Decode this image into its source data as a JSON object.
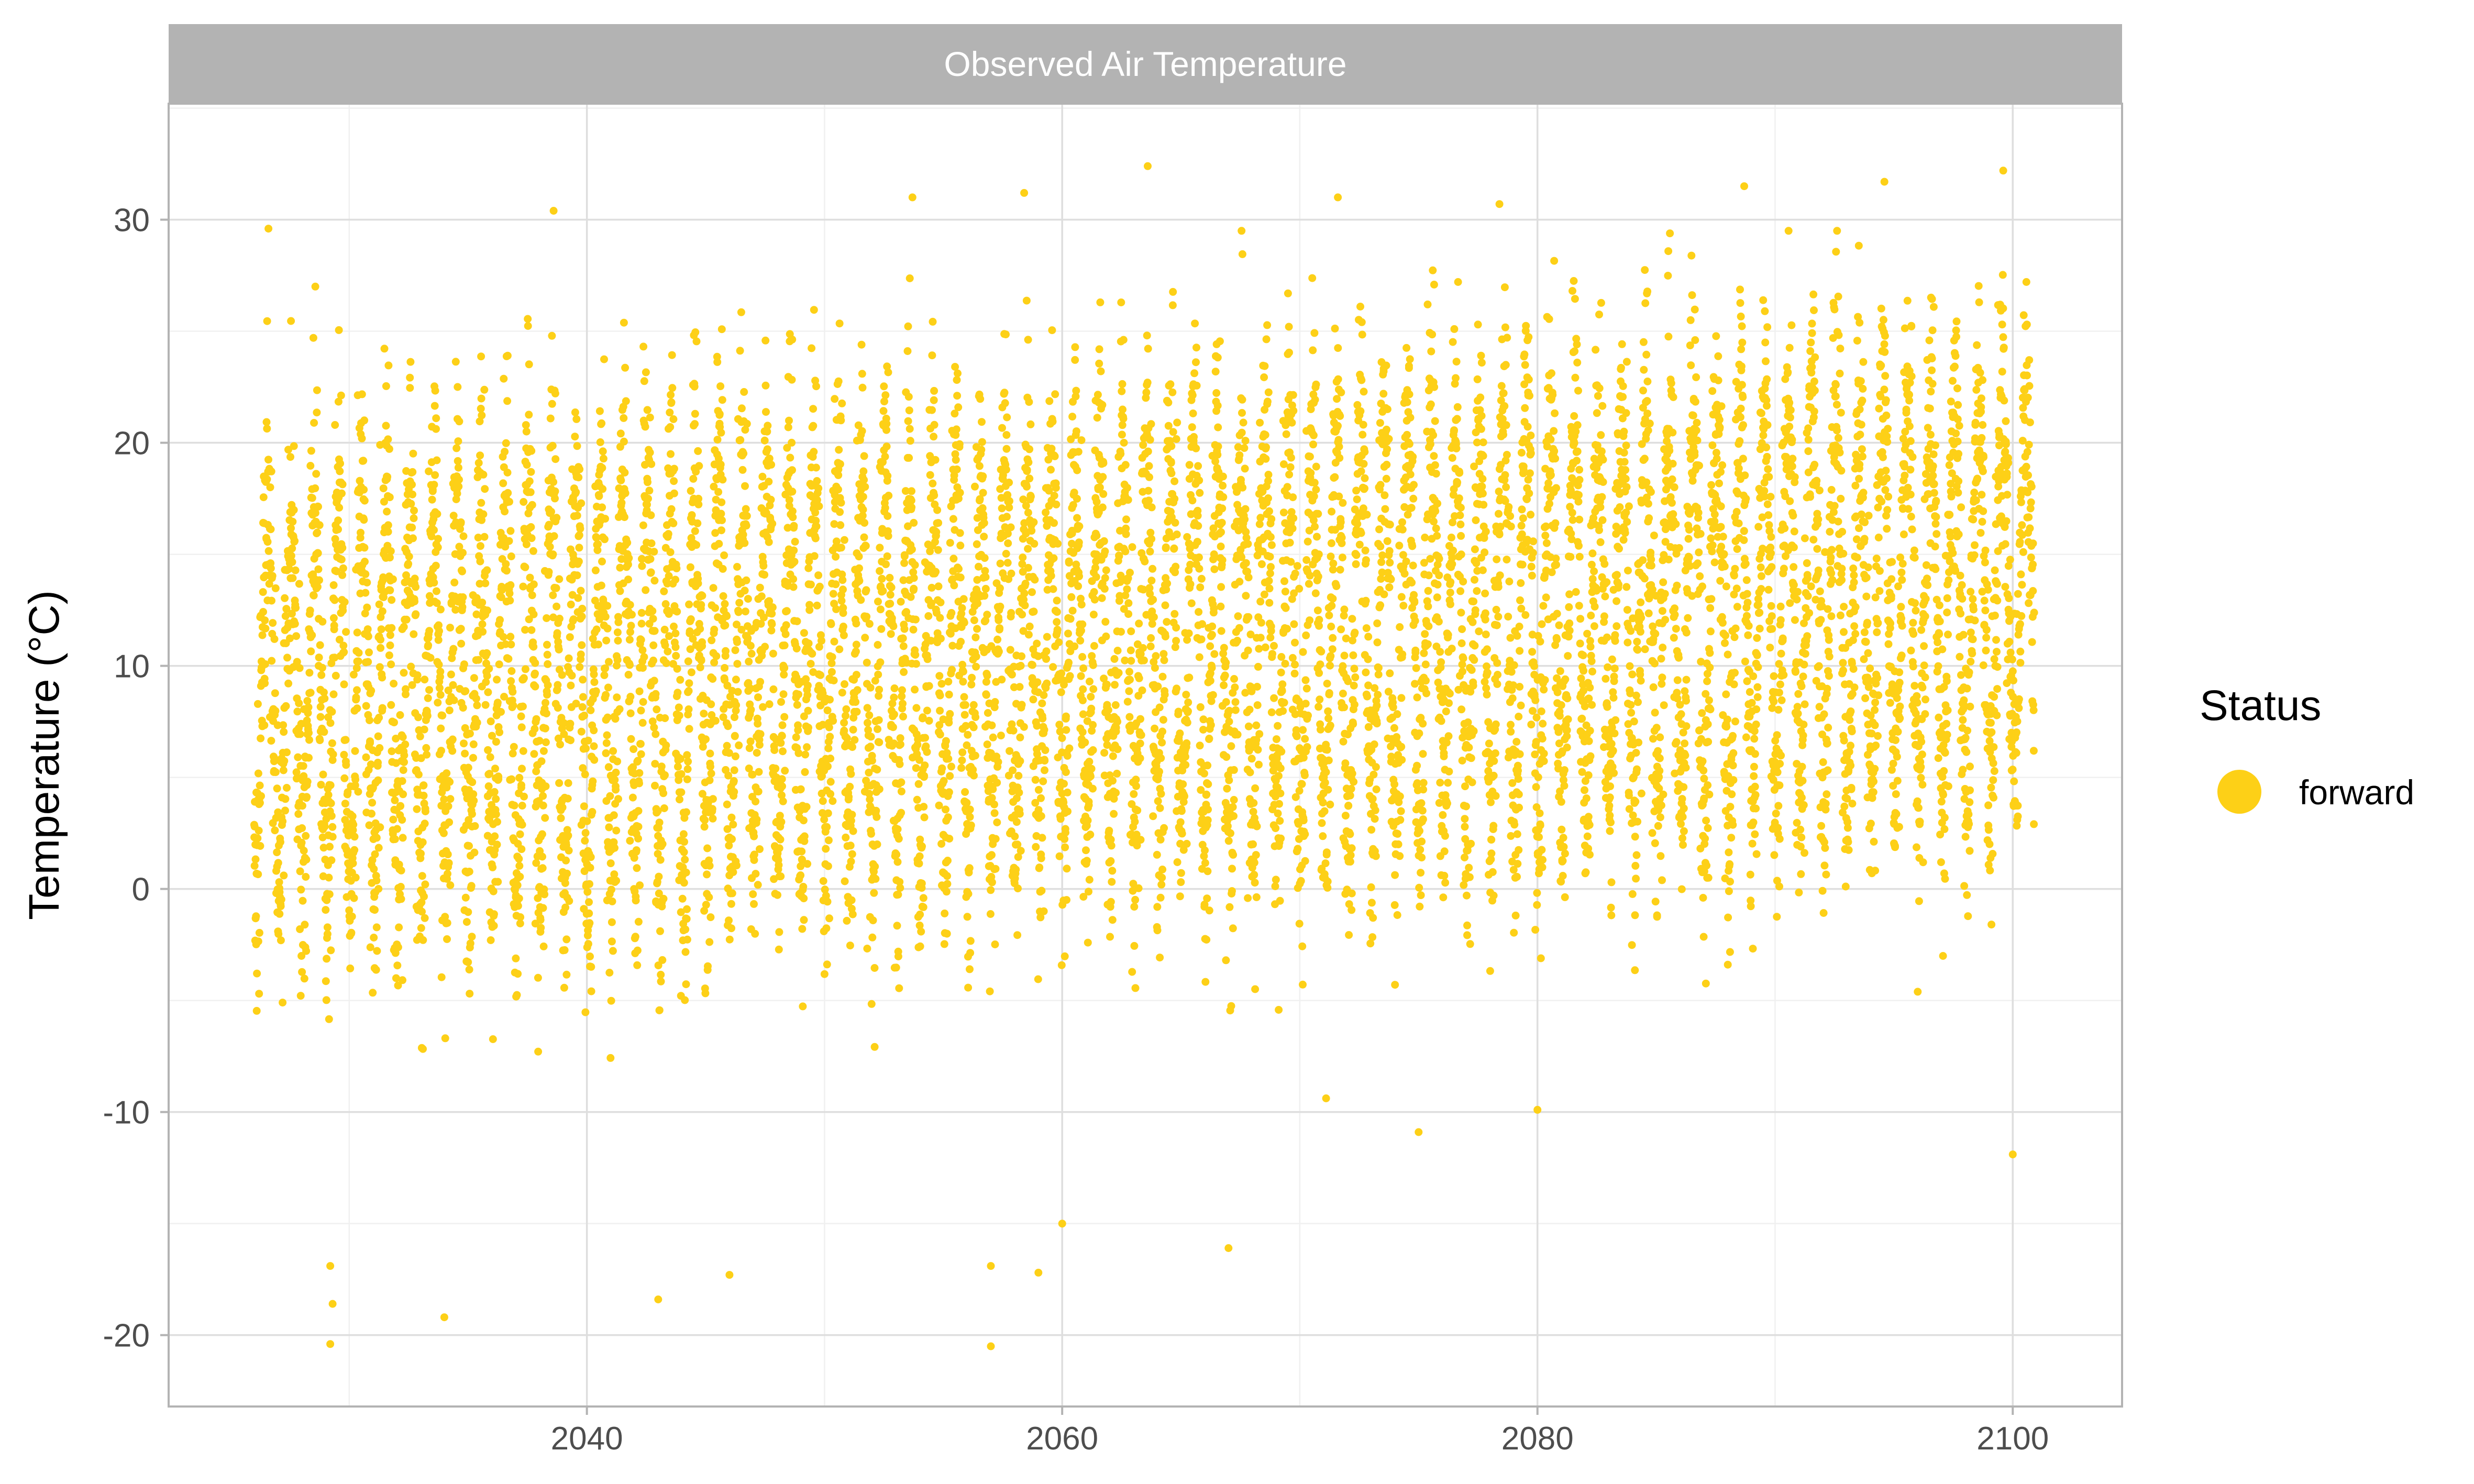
{
  "chart_data": {
    "type": "scatter",
    "title": "",
    "facet_label": "Observed Air Temperature",
    "xlabel": "",
    "ylabel": "Temperature (°C)",
    "xlim": [
      2022.4,
      2104.6
    ],
    "ylim": [
      -23.2,
      35.2
    ],
    "x_ticks": [
      2040,
      2060,
      2080,
      2100
    ],
    "x_tick_labels": [
      "2040",
      "2060",
      "2080",
      "2100"
    ],
    "y_ticks": [
      -20,
      -10,
      0,
      10,
      20,
      30
    ],
    "y_tick_labels": [
      "-20",
      "-10",
      "0",
      "10",
      "20",
      "30"
    ],
    "grid": true,
    "legend": {
      "title": "Status",
      "position": "right",
      "entries": [
        "forward"
      ]
    },
    "series": [
      {
        "name": "forward",
        "color": "#FDD017",
        "x_start": 2026.0,
        "x_end": 2100.9,
        "annual_mean_start": 8.5,
        "annual_mean_end": 13.5,
        "seasonal_amplitude": 8.5,
        "daily_noise_sd": 3.2,
        "typical_range": [
          -10,
          29
        ]
      }
    ],
    "extremes": [
      {
        "x": 2026.6,
        "y": 29.6
      },
      {
        "x": 2029.2,
        "y": -20.4
      },
      {
        "x": 2029.3,
        "y": -18.6
      },
      {
        "x": 2029.2,
        "y": -16.9
      },
      {
        "x": 2034.0,
        "y": -19.2
      },
      {
        "x": 2038.6,
        "y": 30.4
      },
      {
        "x": 2043.0,
        "y": -18.4
      },
      {
        "x": 2046.0,
        "y": -17.3
      },
      {
        "x": 2053.7,
        "y": 31.0
      },
      {
        "x": 2057.0,
        "y": -20.5
      },
      {
        "x": 2057.0,
        "y": -16.9
      },
      {
        "x": 2058.4,
        "y": 31.2
      },
      {
        "x": 2059.0,
        "y": -17.2
      },
      {
        "x": 2060.0,
        "y": -15.0
      },
      {
        "x": 2063.6,
        "y": 32.4
      },
      {
        "x": 2067.0,
        "y": -16.1
      },
      {
        "x": 2071.6,
        "y": 31.0
      },
      {
        "x": 2075.0,
        "y": -10.9
      },
      {
        "x": 2078.4,
        "y": 30.7
      },
      {
        "x": 2080.0,
        "y": -9.9
      },
      {
        "x": 2088.7,
        "y": 31.5
      },
      {
        "x": 2094.6,
        "y": 31.7
      },
      {
        "x": 2099.6,
        "y": 32.2
      },
      {
        "x": 2100.0,
        "y": -11.9
      }
    ]
  }
}
